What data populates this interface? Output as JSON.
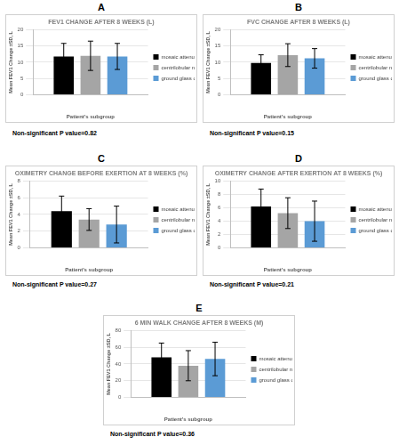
{
  "chart_data": [
    {
      "type": "bar",
      "panel": "A",
      "title": "FEV1 CHANGE AFTER 8 WEEKS (L)",
      "x_label": "Patient's subgroup",
      "y_label": "Mean FEV1 Change ±SD, L",
      "categories": [
        null
      ],
      "series": [
        {
          "name": "mosaic attenuation nfHP",
          "color": "#000000",
          "values": [
            11.8
          ],
          "errors": [
            4.0
          ]
        },
        {
          "name": "centrilobular nodules nfHP",
          "color": "#a5a5a5",
          "values": [
            12.0
          ],
          "errors": [
            4.5
          ]
        },
        {
          "name": "ground glass opacities nfHP",
          "color": "#5b9bd5",
          "values": [
            11.8
          ],
          "errors": [
            4.0
          ]
        }
      ],
      "ylim": [
        0,
        20
      ],
      "yticks": [
        0,
        5,
        10,
        15,
        20
      ],
      "grid": true,
      "legend": "right",
      "annotation": "Non-significant P value=0.82"
    },
    {
      "type": "bar",
      "panel": "B",
      "title": "FVC CHANGE AFTER 8 WEEKS (L)",
      "x_label": "Patient's subgroup",
      "y_label": "Mean FEV1 Change ±SD, L",
      "categories": [
        null
      ],
      "series": [
        {
          "name": "mosaic attenuation nfHP",
          "color": "#000000",
          "values": [
            9.8
          ],
          "errors": [
            2.5
          ]
        },
        {
          "name": "centrilobular nodules nfHP",
          "color": "#a5a5a5",
          "values": [
            12.2
          ],
          "errors": [
            3.5
          ]
        },
        {
          "name": "ground glass opacities nfHP",
          "color": "#5b9bd5",
          "values": [
            11.2
          ],
          "errors": [
            3.0
          ]
        }
      ],
      "ylim": [
        0,
        20
      ],
      "yticks": [
        0,
        5,
        10,
        15,
        20
      ],
      "grid": true,
      "legend": "right",
      "annotation": "Non-significant P value=0.15"
    },
    {
      "type": "bar",
      "panel": "C",
      "title": "OXIMETRY CHANGE BEFORE EXERTION AT 8 WEEKS (%)",
      "x_label": "Patient's subgroup",
      "y_label": "Mean FEV1 Change ±SD, L",
      "categories": [
        null
      ],
      "series": [
        {
          "name": "mosaic attenuation nfHP",
          "color": "#000000",
          "values": [
            4.4
          ],
          "errors": [
            1.8
          ]
        },
        {
          "name": "centrilobular nodules nfHP",
          "color": "#a5a5a5",
          "values": [
            3.4
          ],
          "errors": [
            1.3
          ]
        },
        {
          "name": "ground glass opacities nfHP",
          "color": "#5b9bd5",
          "values": [
            2.8
          ],
          "errors": [
            2.2
          ]
        }
      ],
      "ylim": [
        0,
        8
      ],
      "yticks": [
        0,
        2,
        4,
        6,
        8
      ],
      "grid": true,
      "legend": "right",
      "annotation": "Non-significant P value=0.27"
    },
    {
      "type": "bar",
      "panel": "D",
      "title": "OXIMETRY CHANGE AFTER EXERTION AT 8 WEEKS (%)",
      "x_label": "Patient's subgroup",
      "y_label": "Mean FEV1 Change ±SD, L",
      "categories": [
        null
      ],
      "series": [
        {
          "name": "mosaic attenuation nfHP",
          "color": "#000000",
          "values": [
            6.2
          ],
          "errors": [
            2.6
          ]
        },
        {
          "name": "centrilobular nodules nfHP",
          "color": "#a5a5a5",
          "values": [
            5.2
          ],
          "errors": [
            2.3
          ]
        },
        {
          "name": "ground glass opacities nfHP",
          "color": "#5b9bd5",
          "values": [
            4.0
          ],
          "errors": [
            3.0
          ]
        }
      ],
      "ylim": [
        0,
        10
      ],
      "yticks": [
        0,
        2,
        4,
        6,
        8,
        10
      ],
      "grid": true,
      "legend": "right",
      "annotation": "Non-significant P value=0.21"
    },
    {
      "type": "bar",
      "panel": "E",
      "title": "6 MIN WALK CHANGE AFTER 8 WEEKS (M)",
      "x_label": "Patient's subgroup",
      "y_label": "Mean FEV1 Change ±SD, L",
      "categories": [
        null
      ],
      "series": [
        {
          "name": "mosaic attenuation nfHP",
          "color": "#000000",
          "values": [
            48
          ],
          "errors": [
            17
          ]
        },
        {
          "name": "centrilobular nodules nfHP",
          "color": "#a5a5a5",
          "values": [
            38
          ],
          "errors": [
            18
          ]
        },
        {
          "name": "ground glass opacities nfHP",
          "color": "#5b9bd5",
          "values": [
            46
          ],
          "errors": [
            20
          ]
        }
      ],
      "ylim": [
        0,
        80
      ],
      "yticks": [
        0,
        20,
        40,
        60,
        80
      ],
      "grid": true,
      "legend": "right",
      "annotation": "Non-significant P value=0.36"
    }
  ]
}
